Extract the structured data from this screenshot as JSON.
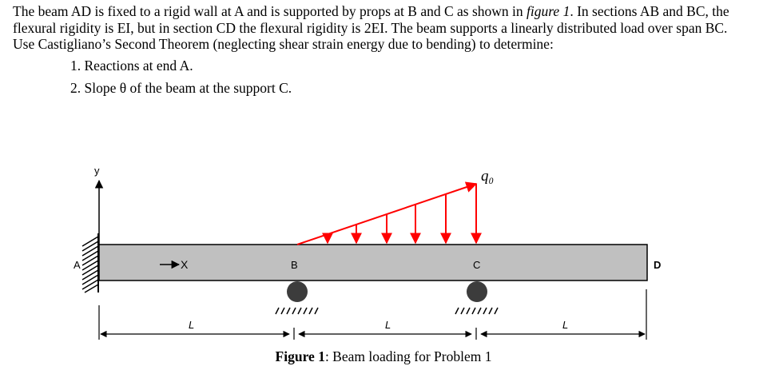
{
  "problem": {
    "line1_a": "The beam AD is fixed to a rigid wall at A and is supported by props at B and C as shown in ",
    "line1_fig": "figure 1",
    "line1_b": ". In sections AB and BC, the flexural rigidity is EI, but in section CD the flexural rigidity is 2EI. The beam supports a linearly distributed load over span BC.",
    "line2": "Use Castigliano’s Second Theorem (neglecting shear strain energy due to bending) to determine:",
    "task1": "1. Reactions at end A.",
    "task2": "2. Slope θ of the beam at the support C."
  },
  "figure": {
    "axis_y": "y",
    "axis_x": "X",
    "point_a": "A",
    "point_b": "B",
    "point_c": "C",
    "point_d": "D",
    "load_label": "q₀",
    "span_ab": "L",
    "span_bc": "L",
    "span_cd": "L",
    "caption_bold": "Figure 1",
    "caption_rest": ": Beam loading for Problem 1",
    "colors": {
      "beam_fill": "#c0c0c0",
      "load": "#ff0000",
      "support": "#3c3c3c"
    }
  }
}
